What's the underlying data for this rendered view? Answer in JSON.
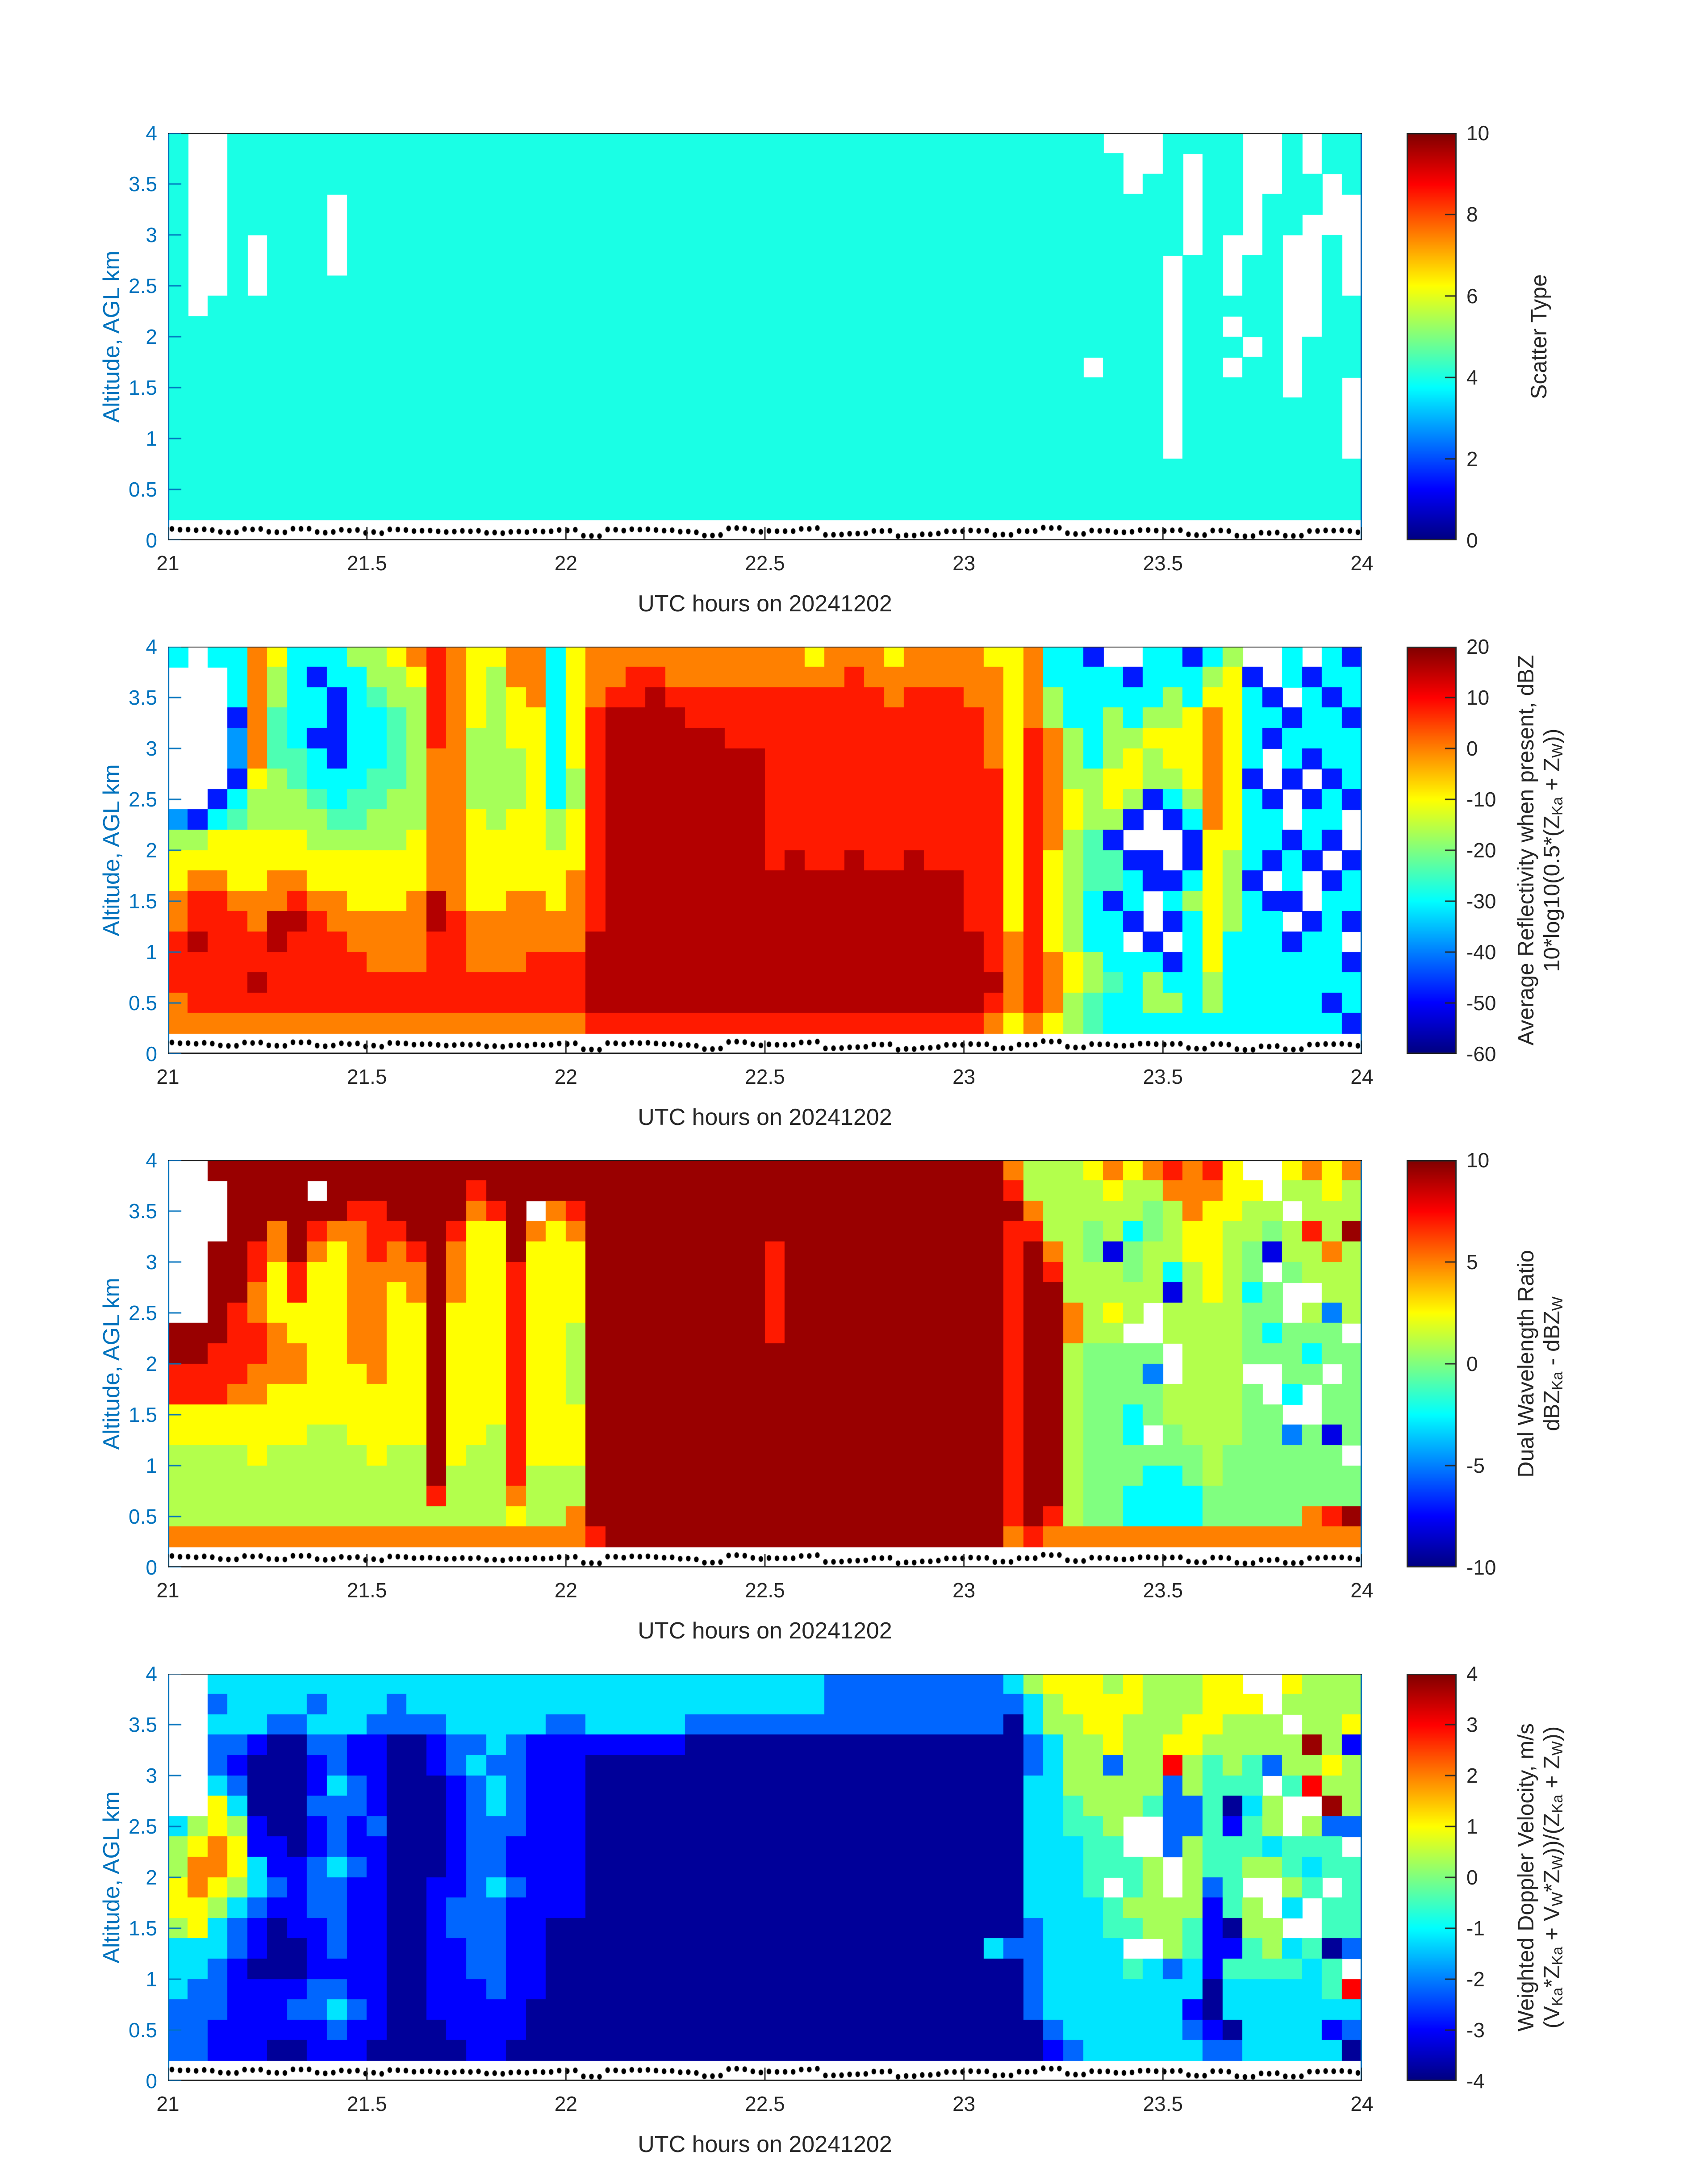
{
  "chart_data": {
    "type": "heatmap",
    "colormap": "jet",
    "x_range": [
      21,
      24
    ],
    "y_range": [
      0,
      4
    ],
    "x_tick_labels": [
      "21",
      "21.5",
      "22",
      "22.5",
      "23",
      "23.5",
      "24"
    ],
    "x_ticks": [
      21,
      21.5,
      22,
      22.5,
      23,
      23.5,
      24
    ],
    "y_tick_labels": [
      "0",
      "0.5",
      "1",
      "1.5",
      "2",
      "2.5",
      "3",
      "3.5",
      "4"
    ],
    "y_ticks": [
      0,
      0.5,
      1,
      1.5,
      2,
      2.5,
      3,
      3.5,
      4
    ],
    "axis_blue": "#0072BD",
    "text_color": "#262626",
    "dot_color": "#000000",
    "surface_dots": {
      "count": 148,
      "alt_min": 0.04,
      "alt_max": 0.12,
      "seed": 20241202
    },
    "panels": [
      {
        "name": "scatter-type",
        "xlabel": "UTC hours on 20241202",
        "ylabel": "Altitude, AGL km",
        "clim": [
          0,
          10
        ],
        "colorbar_ticks": [
          0,
          2,
          4,
          6,
          8,
          10
        ],
        "colorbar_tick_labels": [
          "0",
          "2",
          "4",
          "6",
          "8",
          "10"
        ],
        "colorbar_label_lines": [
          [
            {
              "t": "Scatter Type"
            }
          ]
        ],
        "levels": {
          "c": 4
        },
        "grid": {
          "alt_top": 4.0,
          "alt_bottom": 0.2,
          "cols": [
            "ccccccccccccccccccc",
            ".........cccccccccc",
            "........ccccccccccc",
            "ccccccccccccccccccc",
            "ccccc...ccccccccccc",
            "ccccccccccccccccccc",
            "ccccccccccccccccccc",
            "ccccccccccccccccccc",
            "ccc....cccccccccccc",
            "ccccccccccccccccccc",
            "ccccccccccccccccccc",
            "ccccccccccccccccccc",
            "ccccccccccccccccccc",
            "ccccccccccccccccccc",
            "ccccccccccccccccccc",
            "ccccccccccccccccccc",
            "ccccccccccccccccccc",
            "ccccccccccccccccccc",
            "ccccccccccccccccccc",
            "ccccccccccccccccccc",
            "ccccccccccccccccccc",
            "ccccccccccccccccccc",
            "ccccccccccccccccccc",
            "ccccccccccccccccccc",
            "ccccccccccccccccccc",
            "ccccccccccccccccccc",
            "ccccccccccccccccccc",
            "ccccccccccccccccccc",
            "ccccccccccccccccccc",
            "ccccccccccccccccccc",
            "ccccccccccccccccccc",
            "ccccccccccccccccccc",
            "ccccccccccccccccccc",
            "ccccccccccccccccccc",
            "ccccccccccccccccccc",
            "ccccccccccccccccccc",
            "ccccccccccccccccccc",
            "ccccccccccccccccccc",
            "ccccccccccccccccccc",
            "ccccccccccccccccccc",
            "ccccccccccccccccccc",
            "ccccccccccccccccccc",
            "ccccccccccccccccccc",
            "ccccccccccccccccccc",
            "ccccccccccccccccccc",
            "ccccccccccccccccccc",
            "ccccccccccc.ccccccc",
            ".cccccccccccccccccc",
            "...cccccccccccccccc",
            "..ccccccccccccccccc",
            "cccccc..........ccc",
            "c.....ccccccccccccc",
            "ccccccccccccccccccc",
            "ccccc...c.c.ccccccc",
            "......cccc.cccccccc",
            "...cccccccccccccccc",
            "ccccc........cccccc",
            "..cc......ccccccccc",
            "cc...cccccccccccccc",
            "ccc.....cccc....ccc"
          ]
        }
      },
      {
        "name": "average-reflectivity",
        "xlabel": "UTC hours on 20241202",
        "ylabel": "Altitude, AGL km",
        "clim": [
          -60,
          20
        ],
        "colorbar_ticks": [
          -60,
          -50,
          -40,
          -30,
          -20,
          -10,
          0,
          10,
          20
        ],
        "colorbar_tick_labels": [
          "-60",
          "-50",
          "-40",
          "-30",
          "-20",
          "-10",
          "0",
          "10",
          "20"
        ],
        "colorbar_label_lines": [
          [
            {
              "t": "Average Reflectivity when present, dBZ"
            }
          ],
          [
            {
              "t": "10*log10(0.5*(Z"
            },
            {
              "t": "Ka",
              "sub": true
            },
            {
              "t": " + Z"
            },
            {
              "t": "W",
              "sub": true
            },
            {
              "t": "))"
            }
          ]
        ],
        "levels": {
          "R": 16,
          "r": 8,
          "o": 0,
          "y": -10,
          "g": -17,
          "e": -24,
          "c": -30,
          "b": -38,
          "B": -48,
          "N": -56
        },
        "grid": {
          "alt_top": 4.0,
          "alt_bottom": 0.2,
          "cols": [
            "c.......bgyyoorrroo",
            "........BgyorrRrrro",
            "c......Bcyyorrrrrro",
            "cccBbbBceyyyorrrrro",
            "ooooooyggyyyoorrRro",
            "yggeeegggyyooRRrrro",
            "ccccceeggyyorRrrrro",
            "cBccBcceggyyorrrrro",
            "ccBBBBccegyyoorrrro",
            "gcccccceegyyyoorrro",
            "ggeccceeggyyyooorro",
            "yggeeeegggyyyooorro",
            "oygggggggyyyoooorro",
            "rrrrroooooooRRrrrro",
            "ooooooooooooorrrrro",
            "yyyyggggyyyyyooorro",
            "yggggggggyyyyooorro",
            "ooyyygggyyyyoooorro",
            "oooyyyyyyyyyooorrro",
            "ccccccccggyyyoorrro",
            "yyyyyyggyyyoooorrro",
            "ooorrrrrrrrrrrRRRRr",
            "oorRRRRRRRRRRRRRRRr",
            "orrRRRRRRRRRRRRRRRr",
            "orRRRRRRRRRRRRRRRRr",
            "oorRRRRRRRRRRRRRRRr",
            "oorrRRRRRRRRRRRRRRr",
            "oorrRRRRRRRRRRRRRRr",
            "oorrrRRRRRRRRRRRRRr",
            "oorrrRRRRRRRRRRRRRr",
            "oorrrrrrrrrRRRRRRRr",
            "oorrrrrrrrRRRRRRRRr",
            "yorrrrrrrrrRRRRRRRr",
            "oorrrrrrrrrRRRRRRRr",
            "orrrrrrrrrRRRRRRRRr",
            "oorrrrrrrrrRRRRRRRr",
            "yoorrrrrrrrRRRRRRRr",
            "oorrrrrrrrRRRRRRRRr",
            "oorrrrrrrrrRRRRRRRr",
            "oorrrrrrrrrRRRRRRRr",
            "ooorrrrrrrrrrrRRRRr",
            "yooooorrrrrrrrrrRro",
            "yyyyyyyyyyyyyyooooy",
            "oooorrrrrrrrrrrrrro",
            "ccggooooooyyyyyoooy",
            "ccccgggyyggggggyygg",
            "Bcccccgggeeecccggee",
            ".ccgggyygBeeBcccecc",
            ".BccgyygB.BccB.cccc",
            "cccgyggB..BB..Bcggc",
            "ccggyygcB..BcB.Bcgc",
            "BccyyyygcBBcgcccccc",
            "cgyooooooyyyyyyyggc",
            "gyyyyyyyyyggggccccc",
            ".BccccBccccBccccccc",
            "..BcB..BccB.Bcccccc",
            "cc.BccB..BccB.Bcccc",
            ".BcccB.BccB..Bccccc",
            "ccBcccBccB.BcccccBc",
            "BccBcccB..BccB.BccB"
          ]
        }
      },
      {
        "name": "dual-wavelength-ratio",
        "xlabel": "UTC hours on 20241202",
        "ylabel": "Altitude, AGL km",
        "clim": [
          -10,
          10
        ],
        "colorbar_ticks": [
          -10,
          -5,
          0,
          5,
          10
        ],
        "colorbar_tick_labels": [
          "-10",
          "-5",
          "0",
          "5",
          "10"
        ],
        "colorbar_label_lines": [
          [
            {
              "t": "Dual Wavelength Ratio"
            }
          ],
          [
            {
              "t": "dBZ"
            },
            {
              "t": "Ka",
              "sub": true
            },
            {
              "t": " - dBZ"
            },
            {
              "t": "W",
              "sub": true
            }
          ]
        ],
        "levels": {
          "R": 9.5,
          "r": 7,
          "o": 5,
          "y": 2.5,
          "g": 1,
          "e": 0,
          "c": -2.5,
          "b": -5,
          "N": -8
        },
        "grid": {
          "alt_top": 4.0,
          "alt_bottom": 0.2,
          "cols": [
            "........RRrryyggggo",
            "........RRrryyggggo",
            "R...RRRRRrrryyggggo",
            "RRRRRRRrrrroyyggggo",
            "RRRRrroorrooyyygggo",
            "RRRooyyyoooyyyggggo",
            "RRRRRrryyooyyyggggo",
            "R.Rroyyyyyyyygggggo",
            "RRRoyyyyyyyyygggggo",
            "RRroooooooyyyyggggo",
            "RRrrrooooooyyyygggo",
            "RRRrooyyyyyyyyggggo",
            "RRRRrooyyyyyyyggggo",
            "RRRRRRRRRRRRRRRRrgo",
            "RRRroooyyyyyyyygggo",
            "Rroyyyyyyyyyyyggggo",
            "RRryyyyyyyyyygggggo",
            "RRRRRrrrrrrrrrrroyo",
            "RR.oyyyyyyyyyyygggo",
            "RRoyyyyyyyyyyyygggo",
            "RRroyyyyggggyyyggoo",
            "RRRRRRRRRRRRRRRRRRr",
            "RRRRRRRRRRRRRRRRRRR",
            "RRRRRRRRRRRRRRRRRRR",
            "RRRRRRRRRRRRRRRRRRR",
            "RRRRRRRRRRRRRRRRRRR",
            "RRRRRRRRRRRRRRRRRRR",
            "RRRRRRRRRRRRRRRRRRR",
            "RRRRRRRRRRRRRRRRRRR",
            "RRRRRRRRRRRRRRRRRRR",
            "RRRRrrrrrRRRRRRRRRR",
            "RRRRRRRRRRRRRRRRRRR",
            "RRRRRRRRRRRRRRRRRRR",
            "RRRRRRRRRRRRRRRRRRR",
            "RRRRRRRRRRRRRRRRRRR",
            "RRRRRRRRRRRRRRRRRRR",
            "RRRRRRRRRRRRRRRRRRR",
            "RRRRRRRRRRRRRRRRRRR",
            "RRRRRRRRRRRRRRRRRRR",
            "RRRRRRRRRRRRRRRRRRR",
            "RRRRRRRRRRRRRRRRRRR",
            "RRRRRRRRRRRRRRRRRRR",
            "orRrrrrrrrrrrrrrrro",
            "ggorRRRRRRRRRRRRRRr",
            "ggggorRRRRRRRRRRRro",
            "gggggggoogggggggggo",
            "yggeeggggeeeeeeeeeo",
            "oyggNggygeeeeeeeeeo",
            "yggceegg.eeecceecco",
            "ogeeggg..ebee.eccco",
            "rogggcNgg..ggeeccco",
            "oooyygggggggggeecco",
            "royyyyygggggggggeeo",
            "yyygggggggggggeeeeo",
            ".yggeeceee.eeeeeeeo",
            "..geN.eece..eeeeeeo",
            "yg.gge..eeec.beeeeo",
            "oggrgg.gece..eeeeoo",
            "yyggoggbee.eeNeeero",
            "oggRgggg.eeeee.eeRo"
          ]
        }
      },
      {
        "name": "weighted-doppler-velocity",
        "xlabel": "UTC hours on 20241202",
        "ylabel": "Altitude, AGL km",
        "clim": [
          -4,
          4
        ],
        "colorbar_ticks": [
          -4,
          -3,
          -2,
          -1,
          0,
          1,
          2,
          3,
          4
        ],
        "colorbar_tick_labels": [
          "-4",
          "-3",
          "-2",
          "-1",
          "0",
          "1",
          "2",
          "3",
          "4"
        ],
        "colorbar_label_lines": [
          [
            {
              "t": "Weighted Doppler Velocity, m/s"
            }
          ],
          [
            {
              "t": "(V"
            },
            {
              "t": "Ka",
              "sub": true
            },
            {
              "t": "*Z"
            },
            {
              "t": "Ka",
              "sub": true
            },
            {
              "t": " + V"
            },
            {
              "t": "W",
              "sub": true
            },
            {
              "t": "*Z"
            },
            {
              "t": "W",
              "sub": true
            },
            {
              "t": "))/(Z"
            },
            {
              "t": "Ka",
              "sub": true
            },
            {
              "t": " + Z"
            },
            {
              "t": "W",
              "sub": true
            },
            {
              "t": "))"
            }
          ]
        ],
        "levels": {
          "R": 3.8,
          "r": 3,
          "o": 2,
          "y": 1,
          "g": 0.3,
          "e": -0.5,
          "c": -1.2,
          "b": -2.2,
          "B": -3,
          "N": -3.8
        },
        "grid": {
          "alt_top": 4.0,
          "alt_bottom": 0.2,
          "cols": [
            ".......cggyygcccbbb",
            ".......gyooyyccbbbb",
            "cbcbbcyyooygccbbbBB",
            "cccbBbcgyygcbbBBBBB",
            "cccBNNNBBccbBBNBBBB",
            "ccbNNNNNBBbBNNNBBBN",
            "ccbNNNNNNBBBBNNBbBN",
            "cbcbBBbBBbbbBBBbbBB",
            "cccbbcbbbcbbbbBbcbB",
            "cccBBbbBBbBBBBBBbBB",
            "ccbBBBBbBBBBBBBBBBN",
            "cbbNNNNNNNNNNNNNNNN",
            "ccbNNNNNNNNNNNNNNNN",
            "ccbBBNNNNNBBBBBBBNN",
            "cccbbBBBBBBbbBBBBBN",
            "cccbcbbbbbbbbbbBBBB",
            "ccccbccbbbcbbbbbBBB",
            "cccbbbbbBBbBBBBBBBN",
            "cccBBBBBBBBBBBBBNNN",
            "ccbBBBBBBBBBNNNNNNN",
            "ccbBBBBBBBBBNNNNNNN",
            "cccBNNNNNNNNNNNNNNN",
            "cccBNNNNNNNNNNNNNNN",
            "cccBNNNNNNNNNNNNNNN",
            "cccBNNNNNNNNNNNNNNN",
            "cccBNNNNNNNNNNNNNNN",
            "ccbNNNNNNNNNNNNNNNN",
            "ccbNNNNNNNNNNNNNNNN",
            "ccbNNNNNNNNNNNNNNNN",
            "ccbNNNNNNNNNNNNNNNN",
            "ccbNNNNNNNNNNNNNNNN",
            "ccbNNNNNNNNNNNNNNNN",
            "ccbNNNNNNNNNNNNNNNN",
            "bbbNNNNNNNNNNNNNNNN",
            "bbbNNNNNNNNNNNNNNNN",
            "bbbNNNNNNNNNNNNNNNN",
            "bbbNNNNNNNNNNNNNNNN",
            "bbbNNNNNNNNNNNNNNNN",
            "bbbNNNNNNNNNNNNNNNN",
            "bbbNNNNNNNNNNNNNNNN",
            "bbbNNNNNNNNNNNNNNNN",
            "bbbNNNNNNNNNNcNNNNN",
            "cbNNNNNNNNNNNbNNNNN",
            "gccbbcccccccbbbbbNN",
            "yggccccccccccccccbB",
            "yyggggeeccccccccccb",
            "yyyggggeeeecccccccc",
            "gyyybgggee.eecccccc",
            "yyggggg..eege.ecccc",
            "gggggge..gggg.ccccc",
            "gggyrbbbb..gggbcccc",
            "ggyyggbbggggeeccBbc",
            "yyygeeeeeebBBBBNNBb",
            "yygggeNBeeeeNBeccNb",
            ".yggeeceeg.ggeecccc",
            "..ggb.ggcg..ggecccc",
            "yg.gge..eegc.cecccc",
            "gggRgr.gece..eccccc",
            "ggggygRbee.eeNeecBc",
            "ggyBgggb.eeeeb.rcbN"
          ]
        }
      }
    ]
  }
}
